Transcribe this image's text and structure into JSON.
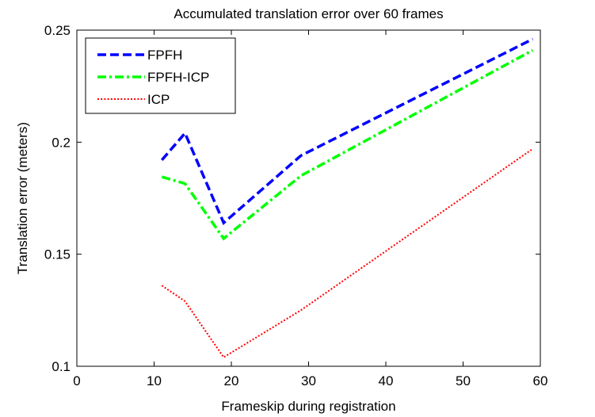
{
  "chart_data": {
    "type": "line",
    "title": "Accumulated translation error over 60 frames",
    "xlabel": "Frameskip during registration",
    "ylabel": "Translation error (meters)",
    "xlim": [
      0,
      60
    ],
    "ylim": [
      0.1,
      0.25
    ],
    "xticks": [
      0,
      10,
      20,
      30,
      40,
      50,
      60
    ],
    "xtick_labels": [
      "0",
      "10",
      "20",
      "30",
      "40",
      "50",
      "60"
    ],
    "yticks": [
      0.1,
      0.15,
      0.2,
      0.25
    ],
    "ytick_labels": [
      "0.1",
      "0.15",
      "0.2",
      "0.25"
    ],
    "grid": false,
    "legend_position": "top-left",
    "series": [
      {
        "name": "FPFH",
        "color": "#0000ff",
        "style": "dashed",
        "x": [
          11,
          14,
          19,
          29,
          59
        ],
        "y": [
          0.192,
          0.204,
          0.164,
          0.194,
          0.246
        ]
      },
      {
        "name": "FPFH-ICP",
        "color": "#00ff00",
        "style": "dashdot",
        "x": [
          11,
          14,
          19,
          29,
          59
        ],
        "y": [
          0.1845,
          0.1815,
          0.157,
          0.185,
          0.241
        ]
      },
      {
        "name": "ICP",
        "color": "#ff0000",
        "style": "dotted",
        "x": [
          11,
          14,
          19,
          29,
          59
        ],
        "y": [
          0.136,
          0.129,
          0.104,
          0.125,
          0.197
        ]
      }
    ]
  }
}
